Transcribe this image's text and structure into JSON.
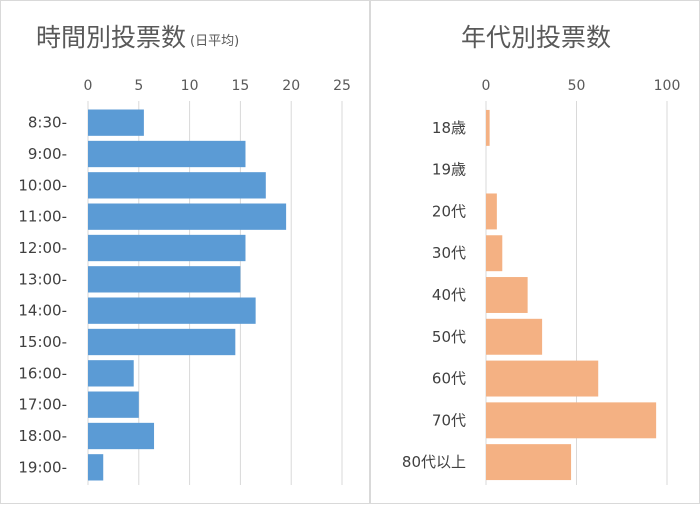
{
  "colors": {
    "left_bar": "#5b9bd5",
    "right_bar": "#f4b183",
    "grid": "#d9d9d9",
    "text": "#595959"
  },
  "chart_data": [
    {
      "type": "bar",
      "orientation": "horizontal",
      "title": "時間別投票数",
      "title_note": "(日平均)",
      "categories": [
        "8:30-",
        "9:00-",
        "10:00-",
        "11:00-",
        "12:00-",
        "13:00-",
        "14:00-",
        "15:00-",
        "16:00-",
        "17:00-",
        "18:00-",
        "19:00-"
      ],
      "values": [
        5.5,
        15.5,
        17.5,
        19.5,
        15.5,
        15.0,
        16.5,
        14.5,
        4.5,
        5.0,
        6.5,
        1.5
      ],
      "xlim": [
        0,
        25
      ],
      "xticks": [
        0,
        5,
        10,
        15,
        20,
        25
      ],
      "grid": true
    },
    {
      "type": "bar",
      "orientation": "horizontal",
      "title": "年代別投票数",
      "categories": [
        "18歳",
        "19歳",
        "20代",
        "30代",
        "40代",
        "50代",
        "60代",
        "70代",
        "80代以上"
      ],
      "values": [
        2,
        0,
        6,
        9,
        23,
        31,
        62,
        94,
        47
      ],
      "xlim": [
        0,
        100
      ],
      "xticks": [
        0,
        50,
        100
      ],
      "grid": true
    }
  ]
}
